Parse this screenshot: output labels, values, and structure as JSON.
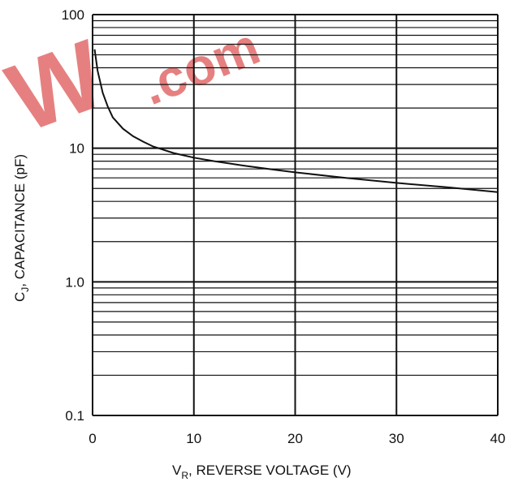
{
  "chart_data": {
    "type": "line",
    "xlabel": {
      "main": "V",
      "sub": "R",
      "rest": ", REVERSE VOLTAGE (V)"
    },
    "ylabel": {
      "main": "C",
      "sub": "J",
      "rest": ", CAPACITANCE (pF)"
    },
    "xlim": [
      0,
      40
    ],
    "ylim": [
      0.1,
      100
    ],
    "yscale": "log",
    "grid": true,
    "x_ticks": [
      {
        "value": 0,
        "label": "0"
      },
      {
        "value": 10,
        "label": "10"
      },
      {
        "value": 20,
        "label": "20"
      },
      {
        "value": 30,
        "label": "30"
      },
      {
        "value": 40,
        "label": "40"
      }
    ],
    "y_ticks": [
      {
        "value": 0.1,
        "label": "0.1"
      },
      {
        "value": 1,
        "label": "1.0"
      },
      {
        "value": 10,
        "label": "10"
      },
      {
        "value": 100,
        "label": "100"
      }
    ],
    "series": [
      {
        "x": [
          0.2,
          0.5,
          1,
          1.5,
          2,
          3,
          4,
          5,
          6,
          8,
          10,
          12,
          15,
          18,
          20,
          25,
          30,
          35,
          40
        ],
        "y": [
          55,
          38,
          26,
          20.5,
          17,
          14,
          12.3,
          11.2,
          10.3,
          9.2,
          8.5,
          8.0,
          7.4,
          6.9,
          6.6,
          6.0,
          5.5,
          5.1,
          4.7
        ]
      }
    ]
  },
  "watermark": {
    "left_text": "W",
    "right_text": ".com",
    "color": "#e26a6a"
  }
}
